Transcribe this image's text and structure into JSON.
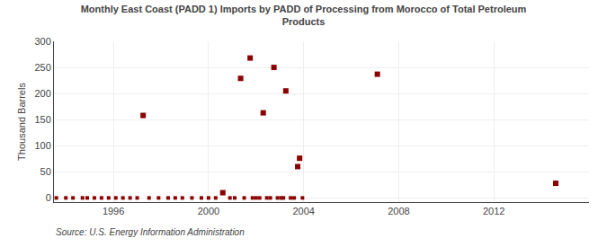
{
  "chart_data": {
    "type": "scatter",
    "title": "Monthly East Coast (PADD 1) Imports by PADD of Processing from Morocco of Total Petroleum\nProducts",
    "ylabel": "Thousand Barrels",
    "annotations": [
      "Source: U.S. Energy Information Administration"
    ],
    "marker": "square",
    "grid": true,
    "xlim": [
      1993.5,
      2016
    ],
    "ylim": [
      -8,
      300
    ],
    "xticks": [
      1996,
      2000,
      2004,
      2008,
      2012
    ],
    "yticks": [
      0,
      50,
      100,
      150,
      200,
      250,
      300
    ],
    "series": [
      {
        "color": "#8b0000",
        "x": [
          1997.25,
          2000.6,
          2001.35,
          2001.75,
          2002.3,
          2002.75,
          2003.25,
          2003.75,
          2003.83,
          2007.1,
          2014.6
        ],
        "values": [
          158,
          10,
          229,
          268,
          163,
          250,
          205,
          60,
          76,
          237,
          28
        ]
      },
      {
        "color": "#8b0000",
        "x": [
          1993.6,
          1994.0,
          1994.3,
          1994.7,
          1994.9,
          1995.2,
          1995.5,
          1995.8,
          1996.1,
          1996.4,
          1996.7,
          1997.0,
          1997.5,
          1997.9,
          1998.3,
          1998.6,
          1998.9,
          1999.3,
          1999.7,
          2000.0,
          2000.3,
          2000.9,
          2001.1,
          2001.5,
          2001.85,
          2002.0,
          2002.15,
          2002.45,
          2002.6,
          2002.9,
          2003.05,
          2003.15,
          2003.45,
          2003.6,
          2003.95
        ],
        "values": [
          0,
          0,
          0,
          0,
          0,
          0,
          0,
          0,
          0,
          0,
          0,
          0,
          0,
          0,
          0,
          0,
          0,
          0,
          0,
          0,
          0,
          0,
          0,
          0,
          0,
          0,
          0,
          0,
          0,
          0,
          0,
          0,
          0,
          0,
          0
        ]
      }
    ]
  }
}
